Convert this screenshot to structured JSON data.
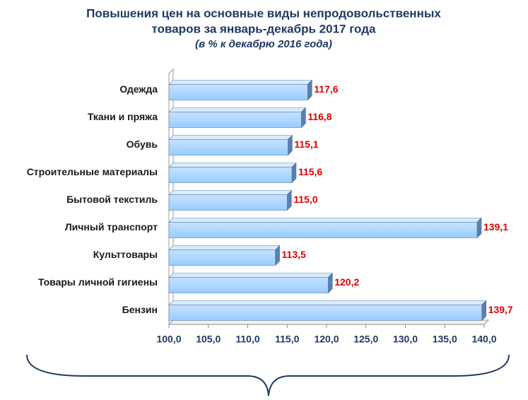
{
  "chart_data": {
    "type": "bar",
    "orientation": "horizontal",
    "title": [
      "Повышения цен на основные виды непродовольственных",
      "товаров за январь-декабрь 2017 года"
    ],
    "subtitle": "(в % к декабрю 2016 года)",
    "categories": [
      "Одежда",
      "Ткани и пряжа",
      "Обувь",
      "Строительные материалы",
      "Бытовой текстиль",
      "Личный транспорт",
      "Культтовары",
      "Товары личной гигиены",
      "Бензин"
    ],
    "values": [
      117.6,
      116.8,
      115.1,
      115.6,
      115.0,
      139.1,
      113.5,
      120.2,
      139.7
    ],
    "value_labels": [
      "117,6",
      "116,8",
      "115,1",
      "115,6",
      "115,0",
      "139,1",
      "113,5",
      "120,2",
      "139,7"
    ],
    "color": "#99ccff",
    "xlim": [
      100,
      140
    ],
    "xticks": [
      {
        "value": 100,
        "label": "100,0"
      },
      {
        "value": 105,
        "label": "105,0"
      },
      {
        "value": 110,
        "label": "110,0"
      },
      {
        "value": 115,
        "label": "115,0"
      },
      {
        "value": 120,
        "label": "120,0"
      },
      {
        "value": 125,
        "label": "125,0"
      },
      {
        "value": 130,
        "label": "130,0"
      },
      {
        "value": 135,
        "label": "135,0"
      },
      {
        "value": 140,
        "label": "140,0"
      }
    ]
  }
}
